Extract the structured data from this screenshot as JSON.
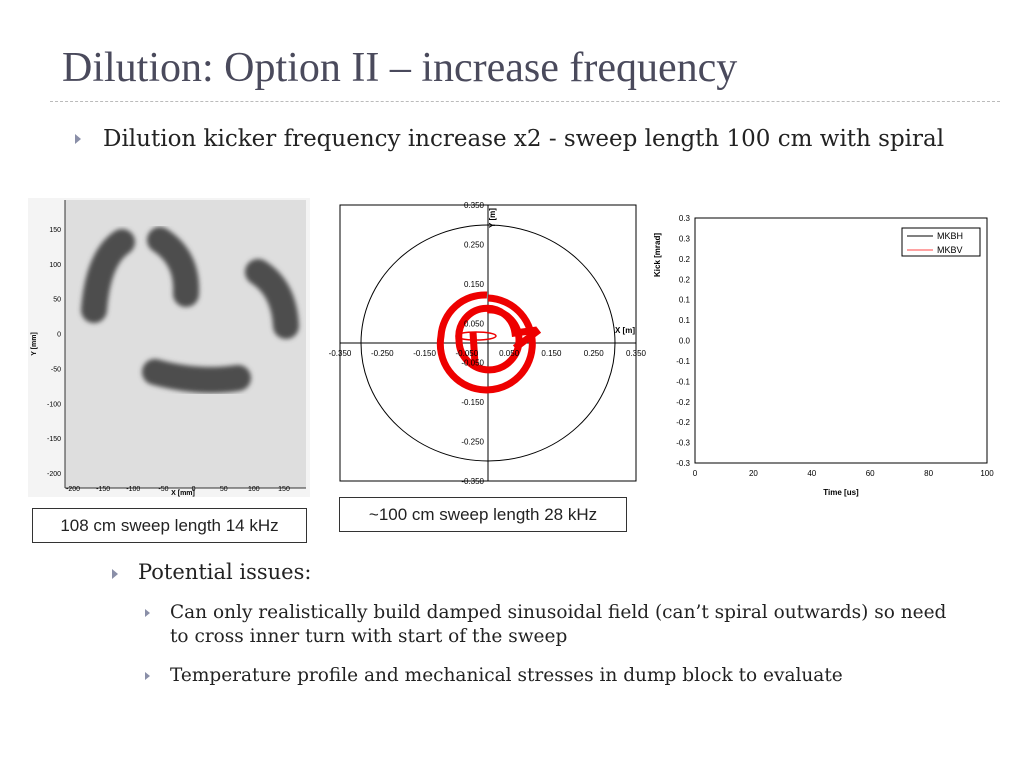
{
  "title": "Dilution: Option II – increase frequency",
  "bullets": [
    "Dilution kicker frequency increase x2 - sweep length 100 cm with spiral"
  ],
  "figures": [
    {
      "x_axis_label": "X [mm]",
      "y_axis_label": "Y [mm]",
      "xticks": [
        "-200",
        "-150",
        "-100",
        "-50",
        "0",
        "50",
        "100",
        "150"
      ],
      "yticks": [
        "150",
        "100",
        "50",
        "0",
        "-50",
        "-100",
        "-150",
        "-200"
      ],
      "caption": "108 cm sweep length 14 kHz"
    },
    {
      "x_axis_label": "X [m]",
      "y_axis_label": "Y [m]",
      "xticks": [
        "-0.350",
        "-0.250",
        "-0.150",
        "-0.050",
        "0.050",
        "0.150",
        "0.250",
        "0.350"
      ],
      "yticks": [
        "0.350",
        "0.250",
        "0.150",
        "0.050",
        "-0.050",
        "-0.150",
        "-0.250",
        "-0.350"
      ],
      "caption": "~100 cm sweep length 28 kHz"
    },
    {
      "x_axis_label": "Time [us]",
      "y_axis_label": "Kick [mrad]",
      "xticks": [
        "0",
        "20",
        "40",
        "60",
        "80",
        "100"
      ],
      "yticks": [
        "0.3",
        "0.3",
        "0.2",
        "0.2",
        "0.1",
        "0.1",
        "0.0",
        "-0.1",
        "-0.1",
        "-0.2",
        "-0.2",
        "-0.3",
        "-0.3"
      ],
      "legend": [
        "MKBH",
        "MKBV"
      ]
    }
  ],
  "sub_heading": "Potential issues:",
  "sub_bullets": [
    "Can only realistically build damped sinusoidal field (can’t spiral outwards) so need to cross inner turn with start of the sweep",
    "Temperature profile and mechanical stresses in dump block to evaluate"
  ]
}
